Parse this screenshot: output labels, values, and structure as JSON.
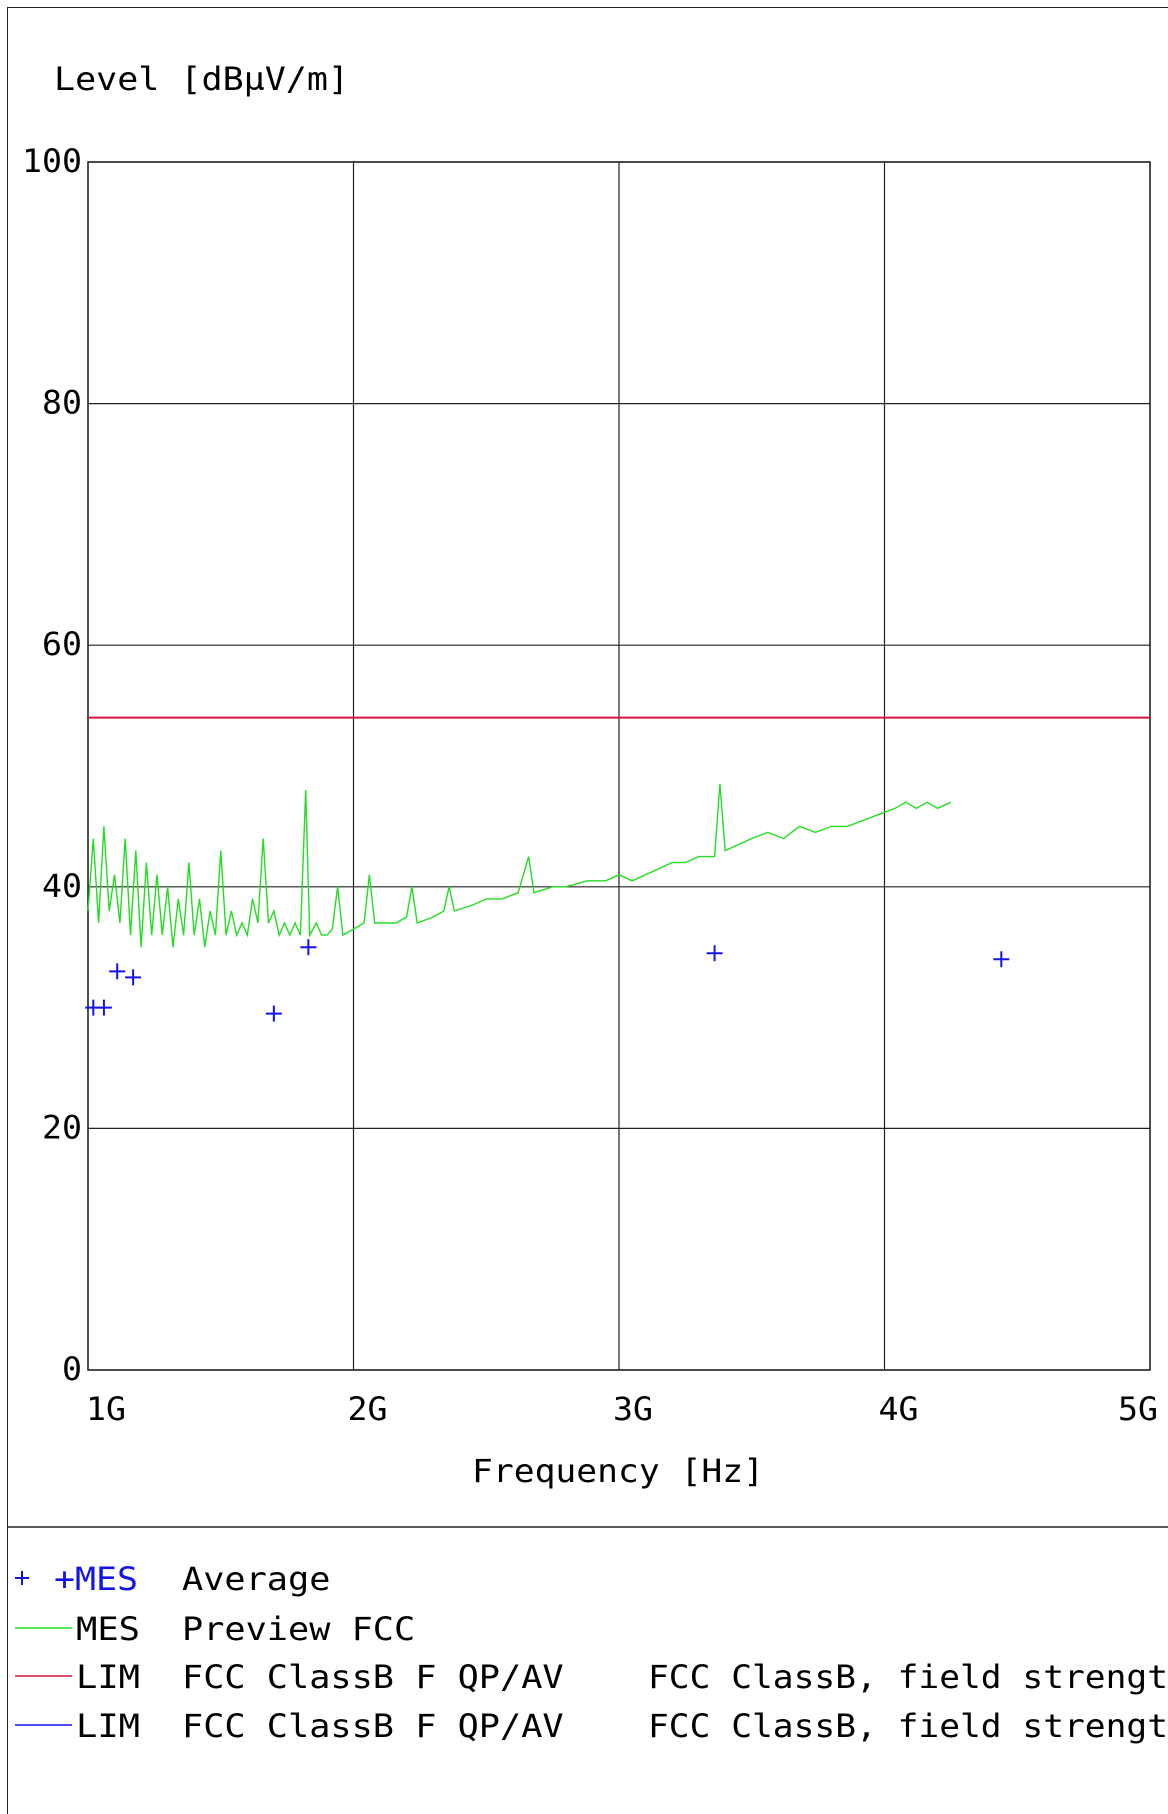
{
  "chart_data": {
    "type": "line",
    "ylabel": "Level [dBµV/m]",
    "xlabel": "Frequency [Hz]",
    "x_scale": "linear",
    "xlim": [
      1000000000,
      5000000000
    ],
    "ylim": [
      0,
      100
    ],
    "grid": true,
    "x_ticks": [
      {
        "value": 1000000000,
        "label": "1G"
      },
      {
        "value": 2000000000,
        "label": "2G"
      },
      {
        "value": 3000000000,
        "label": "3G"
      },
      {
        "value": 4000000000,
        "label": "4G"
      },
      {
        "value": 5000000000,
        "label": "5G"
      }
    ],
    "y_ticks": [
      {
        "value": 0,
        "label": "0"
      },
      {
        "value": 20,
        "label": "20"
      },
      {
        "value": 40,
        "label": "40"
      },
      {
        "value": 60,
        "label": "60"
      },
      {
        "value": 80,
        "label": "80"
      },
      {
        "value": 100,
        "label": "100"
      }
    ],
    "limit_line": {
      "label": "LIM",
      "value": 54,
      "color": "#d4143c"
    },
    "preview": {
      "label": "MES",
      "color": "#22dd22",
      "points": [
        [
          1000000000,
          38
        ],
        [
          1020000000,
          44
        ],
        [
          1040000000,
          37
        ],
        [
          1060000000,
          45
        ],
        [
          1080000000,
          38
        ],
        [
          1100000000,
          41
        ],
        [
          1120000000,
          37
        ],
        [
          1140000000,
          44
        ],
        [
          1160000000,
          36
        ],
        [
          1180000000,
          43
        ],
        [
          1200000000,
          35
        ],
        [
          1220000000,
          42
        ],
        [
          1240000000,
          36
        ],
        [
          1260000000,
          41
        ],
        [
          1280000000,
          36
        ],
        [
          1300000000,
          40
        ],
        [
          1320000000,
          35
        ],
        [
          1340000000,
          39
        ],
        [
          1360000000,
          36
        ],
        [
          1380000000,
          42
        ],
        [
          1400000000,
          36
        ],
        [
          1420000000,
          39
        ],
        [
          1440000000,
          35
        ],
        [
          1460000000,
          38
        ],
        [
          1480000000,
          36
        ],
        [
          1500000000,
          43
        ],
        [
          1520000000,
          36
        ],
        [
          1540000000,
          38
        ],
        [
          1560000000,
          36
        ],
        [
          1580000000,
          37
        ],
        [
          1600000000,
          36
        ],
        [
          1620000000,
          39
        ],
        [
          1640000000,
          37
        ],
        [
          1660000000,
          44
        ],
        [
          1680000000,
          37
        ],
        [
          1700000000,
          38
        ],
        [
          1720000000,
          36
        ],
        [
          1740000000,
          37
        ],
        [
          1760000000,
          36
        ],
        [
          1780000000,
          37
        ],
        [
          1800000000,
          36
        ],
        [
          1820000000,
          48
        ],
        [
          1835000000,
          36
        ],
        [
          1860000000,
          37
        ],
        [
          1880000000,
          36
        ],
        [
          1900000000,
          36
        ],
        [
          1920000000,
          36.5
        ],
        [
          1940000000,
          40
        ],
        [
          1960000000,
          36
        ],
        [
          2000000000,
          36.5
        ],
        [
          2040000000,
          37
        ],
        [
          2060000000,
          41
        ],
        [
          2080000000,
          37
        ],
        [
          2120000000,
          37
        ],
        [
          2160000000,
          37
        ],
        [
          2200000000,
          37.5
        ],
        [
          2220000000,
          40
        ],
        [
          2240000000,
          37
        ],
        [
          2300000000,
          37.5
        ],
        [
          2340000000,
          38
        ],
        [
          2360000000,
          40
        ],
        [
          2380000000,
          38
        ],
        [
          2450000000,
          38.5
        ],
        [
          2500000000,
          39
        ],
        [
          2560000000,
          39
        ],
        [
          2620000000,
          39.5
        ],
        [
          2660000000,
          42.5
        ],
        [
          2680000000,
          39.5
        ],
        [
          2750000000,
          40
        ],
        [
          2800000000,
          40
        ],
        [
          2880000000,
          40.5
        ],
        [
          2950000000,
          40.5
        ],
        [
          3000000000,
          41
        ],
        [
          3050000000,
          40.5
        ],
        [
          3100000000,
          41
        ],
        [
          3150000000,
          41.5
        ],
        [
          3200000000,
          42
        ],
        [
          3250000000,
          42
        ],
        [
          3300000000,
          42.5
        ],
        [
          3360000000,
          42.5
        ],
        [
          3380000000,
          48.5
        ],
        [
          3400000000,
          43
        ],
        [
          3450000000,
          43.5
        ],
        [
          3500000000,
          44
        ],
        [
          3560000000,
          44.5
        ],
        [
          3620000000,
          44
        ],
        [
          3680000000,
          45
        ],
        [
          3740000000,
          44.5
        ],
        [
          3800000000,
          45
        ],
        [
          3860000000,
          45
        ],
        [
          3920000000,
          45.5
        ],
        [
          3980000000,
          46
        ],
        [
          4040000000,
          46.5
        ],
        [
          4080000000,
          47
        ],
        [
          4120000000,
          46.5
        ],
        [
          4160000000,
          47
        ],
        [
          4200000000,
          46.5
        ],
        [
          4250000000,
          47
        ]
      ]
    },
    "measurements": {
      "label": "MES",
      "color": "#1414e6",
      "points": [
        [
          1020000000,
          30
        ],
        [
          1060000000,
          30
        ],
        [
          1110000000,
          33
        ],
        [
          1170000000,
          32.5
        ],
        [
          1700000000,
          29.5
        ],
        [
          1830000000,
          35
        ],
        [
          3360000000,
          34.5
        ],
        [
          4440000000,
          34
        ]
      ]
    }
  },
  "legend": [
    {
      "marker": "+",
      "name": "+MES",
      "desc": "Average",
      "limit": "",
      "color": "#1414e6",
      "type": "cross"
    },
    {
      "marker": "",
      "name": "MES",
      "desc": "Preview FCC",
      "limit": "",
      "color": "#22dd22",
      "type": "line"
    },
    {
      "marker": "",
      "name": "LIM",
      "desc": "FCC ClassB F QP/AV",
      "limit": "FCC ClassB, field strengt",
      "color": "#d4143c",
      "type": "line"
    },
    {
      "marker": "",
      "name": "LIM",
      "desc": "FCC ClassB F QP/AV",
      "limit": "FCC ClassB, field strengt",
      "color": "#1414e6",
      "type": "line"
    }
  ]
}
